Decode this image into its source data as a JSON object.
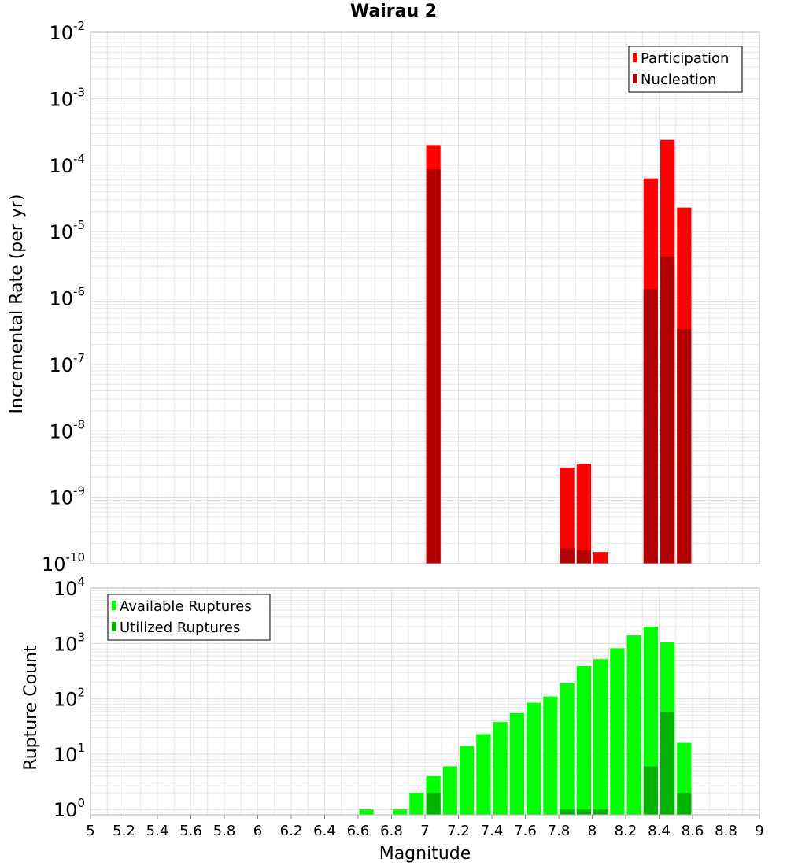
{
  "title": "Wairau 2",
  "xlabel": "Magnitude",
  "colors": {
    "participation": "#ff0000",
    "nucleation": "#b30000",
    "available": "#00ff00",
    "utilized": "#00b300",
    "grid": "#e6e6e6",
    "frame": "#b3b3b3"
  },
  "chart_data": [
    {
      "type": "bar",
      "ylabel": "Incremental Rate (per yr)",
      "yscale": "log",
      "ylim": [
        1e-10,
        0.01
      ],
      "xlim": [
        5,
        9
      ],
      "bar_width": 0.1,
      "legend_position": "top-right",
      "series": [
        {
          "name": "Participation",
          "x": [
            7.05,
            7.85,
            7.95,
            8.05,
            8.35,
            8.45,
            8.55
          ],
          "values": [
            0.0002,
            2.8e-09,
            3.2e-09,
            1.5e-10,
            6.3e-05,
            0.00024,
            2.3e-05
          ]
        },
        {
          "name": "Nucleation",
          "x": [
            7.05,
            7.85,
            7.95,
            8.35,
            8.45,
            8.55
          ],
          "values": [
            8.7e-05,
            1.7e-10,
            1.6e-10,
            1.35e-06,
            4.2e-06,
            3.4e-07
          ]
        }
      ]
    },
    {
      "type": "bar",
      "ylabel": "Rupture Count",
      "yscale": "log",
      "ylim": [
        0.8,
        10000
      ],
      "xlim": [
        5,
        9
      ],
      "bar_width": 0.1,
      "legend_position": "top-left",
      "series": [
        {
          "name": "Available Ruptures",
          "x": [
            6.65,
            6.85,
            6.95,
            7.05,
            7.15,
            7.25,
            7.35,
            7.45,
            7.55,
            7.65,
            7.75,
            7.85,
            7.95,
            8.05,
            8.15,
            8.25,
            8.35,
            8.45,
            8.55
          ],
          "values": [
            1,
            1,
            2,
            4,
            6,
            14,
            23,
            38,
            55,
            85,
            110,
            190,
            390,
            520,
            820,
            1400,
            2000,
            1050,
            16
          ]
        },
        {
          "name": "Utilized Ruptures",
          "x": [
            7.05,
            7.85,
            7.95,
            8.05,
            8.35,
            8.45,
            8.55
          ],
          "values": [
            2,
            1,
            1,
            1,
            6,
            58,
            2
          ]
        }
      ]
    }
  ],
  "x_ticks": [
    "5",
    "5.2",
    "5.4",
    "5.6",
    "5.8",
    "6",
    "6.2",
    "6.4",
    "6.6",
    "6.8",
    "7",
    "7.2",
    "7.4",
    "7.6",
    "7.8",
    "8",
    "8.2",
    "8.4",
    "8.6",
    "8.8",
    "9"
  ],
  "top_y_ticks": [
    {
      "base": "10",
      "exp": "-2"
    },
    {
      "base": "10",
      "exp": "-3"
    },
    {
      "base": "10",
      "exp": "-4"
    },
    {
      "base": "10",
      "exp": "-5"
    },
    {
      "base": "10",
      "exp": "-6"
    },
    {
      "base": "10",
      "exp": "-7"
    },
    {
      "base": "10",
      "exp": "-8"
    },
    {
      "base": "10",
      "exp": "-9"
    },
    {
      "base": "10",
      "exp": "-10"
    }
  ],
  "bottom_y_ticks": [
    {
      "base": "10",
      "exp": "4"
    },
    {
      "base": "10",
      "exp": "3"
    },
    {
      "base": "10",
      "exp": "2"
    },
    {
      "base": "10",
      "exp": "1"
    },
    {
      "base": "10",
      "exp": "0"
    }
  ]
}
